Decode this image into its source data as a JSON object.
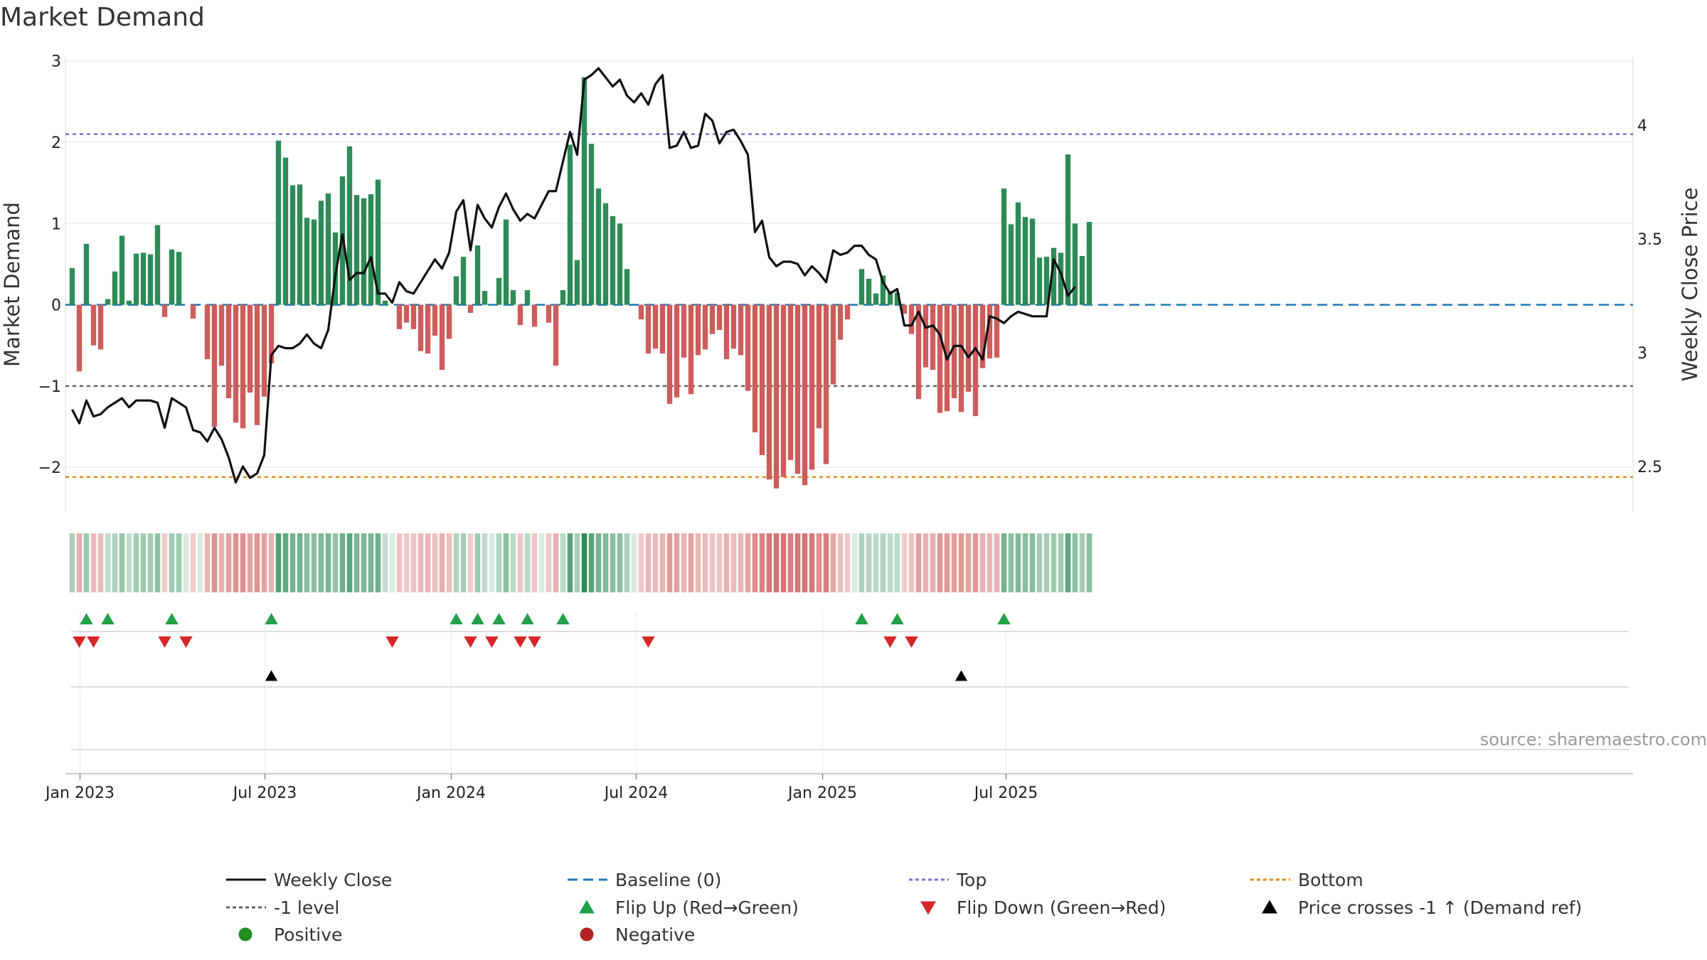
{
  "title": "Market Demand",
  "source": "source: sharemaestro.com",
  "chart_data": {
    "type": "bar",
    "title": "Market Demand",
    "xlabel": "",
    "ylabel": "Market Demand",
    "y2label": "Weekly Close Price",
    "ylim": [
      -2.55,
      3.05
    ],
    "y2lim": [
      2.3,
      4.3
    ],
    "y_ticks": [
      3,
      2,
      1,
      0,
      -1,
      -2
    ],
    "y_tick_labels": [
      "3",
      "2",
      "1",
      "0",
      "−1",
      "−2"
    ],
    "y2_ticks": [
      4,
      3.5,
      3,
      2.5
    ],
    "y2_tick_labels": [
      "4",
      "3.5",
      "3",
      "2.5"
    ],
    "x_ticks": [
      {
        "label": "Jan 2023",
        "week": 1.1
      },
      {
        "label": "Jul 2023",
        "week": 27.1
      },
      {
        "label": "Jan 2024",
        "week": 53.3
      },
      {
        "label": "Jul 2024",
        "week": 79.3
      },
      {
        "label": "Jan 2025",
        "week": 105.5
      },
      {
        "label": "Jul 2025",
        "week": 131.3
      }
    ],
    "levels": {
      "top": 2.1,
      "bottom": -2.12,
      "minus_one": -1,
      "baseline": 0
    },
    "colors": {
      "positive": "#2e8b57",
      "negative": "#cd5c5c",
      "weekly_close": "#111111",
      "top": "#7b6fd6",
      "bottom": "#e08a1e",
      "minus_one": "#666666",
      "baseline": "#1f77b4",
      "flip_up": "#22a04a",
      "flip_down": "#d62728",
      "cross": "#000000",
      "dot_positive": "#228b22",
      "dot_negative": "#b22222"
    },
    "series": [
      {
        "name": "Market Demand",
        "type": "bar",
        "values": [
          0.45,
          -0.82,
          0.75,
          -0.5,
          -0.55,
          0.07,
          0.41,
          0.85,
          0.05,
          0.63,
          0.64,
          0.62,
          0.98,
          -0.15,
          0.68,
          0.65,
          0,
          -0.17,
          0,
          -0.67,
          -1.5,
          -0.75,
          -1.15,
          -1.45,
          -1.52,
          -1.08,
          -1.48,
          -1.13,
          -0.72,
          2.02,
          1.81,
          1.47,
          1.48,
          1.07,
          1.05,
          1.28,
          1.37,
          0.89,
          1.58,
          1.95,
          1.35,
          1.31,
          1.36,
          1.54,
          0.05,
          0,
          -0.3,
          -0.22,
          -0.3,
          -0.57,
          -0.6,
          -0.38,
          -0.8,
          -0.42,
          0.35,
          0.59,
          -0.1,
          0.73,
          0.17,
          0,
          0.33,
          1.05,
          0.18,
          -0.25,
          0.18,
          -0.27,
          0,
          -0.22,
          -0.75,
          0.18,
          1.97,
          0.55,
          2.8,
          1.98,
          1.43,
          1.25,
          1.09,
          1.0,
          0.44,
          0,
          -0.18,
          -0.6,
          -0.54,
          -0.6,
          -1.22,
          -1.14,
          -0.65,
          -1.1,
          -0.62,
          -0.55,
          -0.36,
          -0.31,
          -0.67,
          -0.54,
          -0.62,
          -1.06,
          -1.57,
          -1.85,
          -2.15,
          -2.26,
          -2.12,
          -1.91,
          -2.08,
          -2.22,
          -2.03,
          -1.52,
          -1.96,
          -0.98,
          -0.43,
          -0.18,
          0,
          0.44,
          0.32,
          0.14,
          0.36,
          0.17,
          0.15,
          -0.11,
          -0.36,
          -1.16,
          -0.77,
          -0.8,
          -1.33,
          -1.31,
          -1.15,
          -1.32,
          -1.07,
          -1.37,
          -0.78,
          -0.66,
          -0.65,
          1.43,
          0.99,
          1.26,
          1.08,
          1.06,
          0.58,
          0.59,
          0.7,
          0.64,
          1.85,
          1.0,
          0.6,
          1.02
        ]
      },
      {
        "name": "Weekly Close",
        "type": "line",
        "axis": "y2",
        "values": [
          2.75,
          2.69,
          2.79,
          2.72,
          2.73,
          2.76,
          2.78,
          2.8,
          2.76,
          2.79,
          2.79,
          2.79,
          2.78,
          2.67,
          2.8,
          2.78,
          2.76,
          2.66,
          2.65,
          2.61,
          2.67,
          2.62,
          2.54,
          2.43,
          2.5,
          2.45,
          2.47,
          2.55,
          2.99,
          3.03,
          3.02,
          3.02,
          3.04,
          3.08,
          3.04,
          3.02,
          3.1,
          3.34,
          3.52,
          3.32,
          3.35,
          3.35,
          3.42,
          3.26,
          3.26,
          3.22,
          3.31,
          3.27,
          3.26,
          3.31,
          3.36,
          3.41,
          3.37,
          3.44,
          3.62,
          3.67,
          3.45,
          3.65,
          3.59,
          3.55,
          3.64,
          3.7,
          3.63,
          3.58,
          3.61,
          3.59,
          3.65,
          3.71,
          3.71,
          3.84,
          3.97,
          3.87,
          4.2,
          4.22,
          4.25,
          4.21,
          4.17,
          4.2,
          4.13,
          4.1,
          4.14,
          4.09,
          4.18,
          4.22,
          3.9,
          3.91,
          3.97,
          3.9,
          3.91,
          4.05,
          4.02,
          3.92,
          3.97,
          3.98,
          3.93,
          3.87,
          3.53,
          3.58,
          3.42,
          3.38,
          3.4,
          3.4,
          3.39,
          3.34,
          3.38,
          3.35,
          3.31,
          3.45,
          3.43,
          3.44,
          3.47,
          3.47,
          3.43,
          3.41,
          3.31,
          3.26,
          3.28,
          3.12,
          3.12,
          3.18,
          3.11,
          3.12,
          3.08,
          2.97,
          3.03,
          3.03,
          2.98,
          3.02,
          2.97,
          3.16,
          3.15,
          3.13,
          3.16,
          3.18,
          3.17,
          3.16,
          3.16,
          3.16,
          3.41,
          3.35,
          3.25,
          3.29
        ]
      }
    ],
    "demand_strip_values": [
      0.45,
      -0.82,
      0.75,
      -0.5,
      -0.55,
      0.07,
      0.41,
      0.85,
      0.05,
      0.63,
      0.64,
      0.62,
      0.98,
      -0.15,
      0.68,
      0.65,
      0,
      -0.17,
      0,
      -0.67,
      -1.5,
      -0.75,
      -1.15,
      -1.45,
      -1.52,
      -1.08,
      -1.48,
      -1.13,
      -0.72,
      2.02,
      1.81,
      1.47,
      1.48,
      1.07,
      1.05,
      1.28,
      1.37,
      0.89,
      1.58,
      1.95,
      1.35,
      1.31,
      1.36,
      1.54,
      0.05,
      0,
      -0.3,
      -0.22,
      -0.3,
      -0.57,
      -0.6,
      -0.38,
      -0.8,
      -0.42,
      0.35,
      0.59,
      -0.1,
      0.73,
      0.17,
      0,
      0.33,
      1.05,
      0.18,
      -0.25,
      0.18,
      -0.27,
      0,
      -0.22,
      -0.75,
      0.18,
      1.97,
      0.55,
      2.8,
      1.98,
      1.43,
      1.25,
      1.09,
      1.0,
      0.44,
      0,
      -0.18,
      -0.6,
      -0.54,
      -0.6,
      -1.22,
      -1.14,
      -0.65,
      -1.1,
      -0.62,
      -0.55,
      -0.36,
      -0.31,
      -0.67,
      -0.54,
      -0.62,
      -1.06,
      -1.57,
      -1.85,
      -2.15,
      -2.26,
      -2.12,
      -1.91,
      -2.08,
      -2.22,
      -2.03,
      -1.52,
      -1.96,
      -0.98,
      -0.43,
      -0.18,
      0,
      0.44,
      0.32,
      0.14,
      0.36,
      0.17,
      0.15,
      -0.11,
      -0.36,
      -1.16,
      -0.77,
      -0.8,
      -1.33,
      -1.31,
      -1.15,
      -1.32,
      -1.07,
      -1.37,
      -0.78,
      -0.66,
      -0.65,
      1.43,
      0.99,
      1.26,
      1.08,
      1.06,
      0.58,
      0.59,
      0.7,
      0.64,
      1.85,
      1.0,
      0.6,
      1.02
    ],
    "flip_up_weeks": [
      2,
      5,
      14,
      28,
      54,
      57,
      60,
      64,
      69,
      111,
      116,
      131
    ],
    "flip_down_weeks": [
      1,
      3,
      13,
      16,
      45,
      56,
      59,
      63,
      65,
      81,
      115,
      118
    ],
    "cross_up_weeks": [
      28,
      125
    ],
    "legend": [
      {
        "label": "Weekly Close",
        "marker": "line"
      },
      {
        "label": "Baseline (0)",
        "marker": "dash"
      },
      {
        "label": "Top",
        "marker": "dot-line-top"
      },
      {
        "label": "Bottom",
        "marker": "dot-line-bottom"
      },
      {
        "label": "-1 level",
        "marker": "dot-line-gray"
      },
      {
        "label": "Flip Up (Red→Green)",
        "marker": "triangle-up"
      },
      {
        "label": "Flip Down (Green→Red)",
        "marker": "triangle-down"
      },
      {
        "label": "Price crosses -1 ↑ (Demand ref)",
        "marker": "triangle-black"
      },
      {
        "label": "Positive",
        "marker": "dot-positive"
      },
      {
        "label": "Negative",
        "marker": "dot-negative"
      }
    ]
  }
}
